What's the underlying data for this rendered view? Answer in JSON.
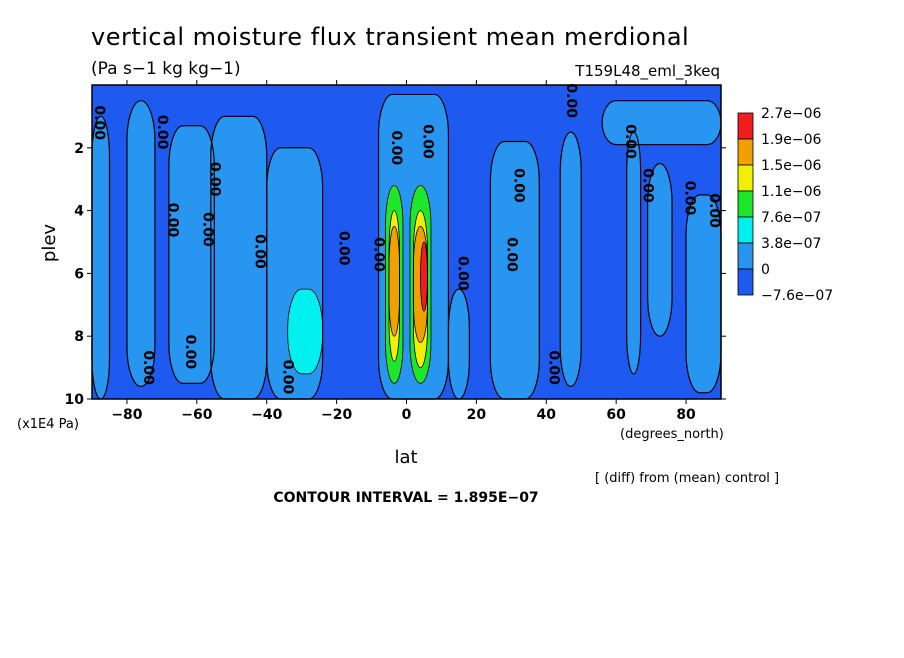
{
  "title": "vertical moisture flux transient mean merdional",
  "subtitle": "(Pa s−1 kg kg−1)",
  "run_id": "T159L48_eml_3keq",
  "note": "[ (diff) from (mean) control ]",
  "contour_interval": "CONTOUR INTERVAL = 1.895E−07",
  "colors": {
    "c0": "#1e5af0",
    "c1": "#2896f0",
    "c2": "#00f0f0",
    "c3": "#1ee628",
    "c4": "#f0f000",
    "c5": "#f0a000",
    "c6": "#f01e1e"
  },
  "chart_data": {
    "type": "heatmap",
    "xlabel": "lat",
    "xunit": "(degrees_north)",
    "ylabel": "plev",
    "yunit": "(x1E4 Pa)",
    "xlim": [
      -90,
      90
    ],
    "ylim": [
      0,
      10
    ],
    "y_inverted": true,
    "x_ticks": [
      "−80",
      "−60",
      "−40",
      "−20",
      "0",
      "20",
      "40",
      "60",
      "80"
    ],
    "x_tick_values": [
      -80,
      -60,
      -40,
      -20,
      0,
      20,
      40,
      60,
      80
    ],
    "y_ticks": [
      "2",
      "4",
      "6",
      "8",
      "10"
    ],
    "y_tick_values": [
      2,
      4,
      6,
      8,
      10
    ],
    "legend_labels": [
      "2.7e−06",
      "1.9e−06",
      "1.5e−06",
      "1.1e−06",
      "7.6e−07",
      "3.8e−07",
      "0",
      "−7.6e−07"
    ],
    "contour_label": "0.00",
    "series": [
      {
        "name": "bands",
        "bands": [
          {
            "lat0": -90,
            "lat1": -85,
            "p0": 1.0,
            "p1": 10,
            "level": 1
          },
          {
            "lat0": -80,
            "lat1": -72,
            "p0": 0.5,
            "p1": 9.6,
            "level": 1
          },
          {
            "lat0": -68,
            "lat1": -55,
            "p0": 1.3,
            "p1": 9.5,
            "level": 1
          },
          {
            "lat0": -56,
            "lat1": -40,
            "p0": 1.0,
            "p1": 10,
            "level": 1
          },
          {
            "lat0": -40,
            "lat1": -24,
            "p0": 2.0,
            "p1": 10,
            "level": 1
          },
          {
            "lat0": -8,
            "lat1": 12,
            "p0": 0.3,
            "p1": 10,
            "level": 1
          },
          {
            "lat0": 12,
            "lat1": 18,
            "p0": 6.5,
            "p1": 10,
            "level": 1
          },
          {
            "lat0": 24,
            "lat1": 38,
            "p0": 1.8,
            "p1": 10,
            "level": 1
          },
          {
            "lat0": 44,
            "lat1": 50,
            "p0": 1.5,
            "p1": 9.6,
            "level": 1
          },
          {
            "lat0": 56,
            "lat1": 90,
            "p0": 0.5,
            "p1": 1.9,
            "level": 1
          },
          {
            "lat0": 63,
            "lat1": 67,
            "p0": 1.5,
            "p1": 9.2,
            "level": 1
          },
          {
            "lat0": 69,
            "lat1": 76,
            "p0": 2.5,
            "p1": 8.0,
            "level": 1
          },
          {
            "lat0": 80,
            "lat1": 90,
            "p0": 3.5,
            "p1": 9.8,
            "level": 1
          },
          {
            "lat0": -34,
            "lat1": -24,
            "p0": 6.5,
            "p1": 9.2,
            "level": 2
          },
          {
            "lat0": -6,
            "lat1": -1,
            "p0": 3.2,
            "p1": 9.5,
            "level": 3
          },
          {
            "lat0": 1,
            "lat1": 7,
            "p0": 3.2,
            "p1": 9.5,
            "level": 3
          },
          {
            "lat0": -5,
            "lat1": -2,
            "p0": 4.0,
            "p1": 8.8,
            "level": 4
          },
          {
            "lat0": 2,
            "lat1": 6,
            "p0": 4.0,
            "p1": 9.0,
            "level": 4
          },
          {
            "lat0": -5,
            "lat1": -2,
            "p0": 4.5,
            "p1": 8.0,
            "level": 5
          },
          {
            "lat0": 2,
            "lat1": 6,
            "p0": 4.5,
            "p1": 8.2,
            "level": 5
          },
          {
            "lat0": 4,
            "lat1": 6,
            "p0": 5.0,
            "p1": 7.2,
            "level": 6
          }
        ]
      }
    ]
  }
}
